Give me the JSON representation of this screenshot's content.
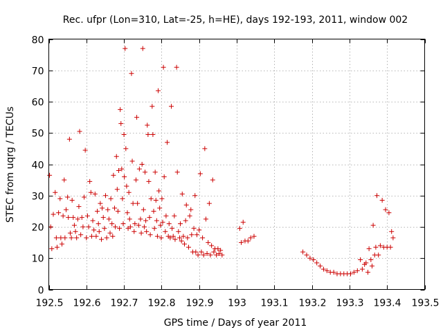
{
  "chart_data": {
    "type": "scatter",
    "title": "Rec. ufpr (Lon=310, Lat=-25, h=HE), days 192-193, 2011, window 002",
    "xlabel": "GPS time / Days of year 2011",
    "ylabel": "STEC from uqrg / TECUs",
    "xlim": [
      192.5,
      193.5
    ],
    "ylim": [
      0,
      80
    ],
    "x_ticks": [
      192.5,
      192.6,
      192.7,
      192.8,
      192.9,
      193,
      193.1,
      193.2,
      193.3,
      193.4,
      193.5
    ],
    "x_tick_labels": [
      "192.5",
      "192.6",
      "192.7",
      "192.8",
      "192.9",
      "193",
      "193.1",
      "193.2",
      "193.3",
      "193.4",
      "193.5"
    ],
    "y_ticks": [
      0,
      10,
      20,
      30,
      40,
      50,
      60,
      70,
      80
    ],
    "y_tick_labels": [
      "0",
      "10",
      "20",
      "30",
      "40",
      "50",
      "60",
      "70",
      "80"
    ],
    "grid": true,
    "marker": "plus",
    "color": "#cc0000",
    "series": [
      {
        "points": [
          [
            192.502,
            36.5
          ],
          [
            192.505,
            20.0
          ],
          [
            192.508,
            13.0
          ],
          [
            192.512,
            24.0
          ],
          [
            192.517,
            31.0
          ],
          [
            192.52,
            16.5
          ],
          [
            192.522,
            13.5
          ],
          [
            192.526,
            24.5
          ],
          [
            192.53,
            29.0
          ],
          [
            192.532,
            16.5
          ],
          [
            192.535,
            14.5
          ],
          [
            192.538,
            23.5
          ],
          [
            192.541,
            35.0
          ],
          [
            192.543,
            16.5
          ],
          [
            192.546,
            25.5
          ],
          [
            192.55,
            29.5
          ],
          [
            192.552,
            23.0
          ],
          [
            192.555,
            48.0
          ],
          [
            192.557,
            18.0
          ],
          [
            192.56,
            16.5
          ],
          [
            192.562,
            28.5
          ],
          [
            192.565,
            23.0
          ],
          [
            192.568,
            20.5
          ],
          [
            192.571,
            18.5
          ],
          [
            192.574,
            16.5
          ],
          [
            192.577,
            22.5
          ],
          [
            192.58,
            26.5
          ],
          [
            192.582,
            50.5
          ],
          [
            192.585,
            17.5
          ],
          [
            192.588,
            23.0
          ],
          [
            192.591,
            20.0
          ],
          [
            192.594,
            29.5
          ],
          [
            192.597,
            44.5
          ],
          [
            192.6,
            16.5
          ],
          [
            192.603,
            23.5
          ],
          [
            192.606,
            20.0
          ],
          [
            192.609,
            34.5
          ],
          [
            192.612,
            31.0
          ],
          [
            192.614,
            17.0
          ],
          [
            192.617,
            22.0
          ],
          [
            192.62,
            19.0
          ],
          [
            192.623,
            30.5
          ],
          [
            192.626,
            17.0
          ],
          [
            192.629,
            25.0
          ],
          [
            192.632,
            21.0
          ],
          [
            192.634,
            18.5
          ],
          [
            192.637,
            27.5
          ],
          [
            192.64,
            16.0
          ],
          [
            192.642,
            26.0
          ],
          [
            192.645,
            23.0
          ],
          [
            192.648,
            19.5
          ],
          [
            192.651,
            30.0
          ],
          [
            192.654,
            16.5
          ],
          [
            192.657,
            25.5
          ],
          [
            192.66,
            22.5
          ],
          [
            192.663,
            18.0
          ],
          [
            192.665,
            29.0
          ],
          [
            192.668,
            21.0
          ],
          [
            192.67,
            17.0
          ],
          [
            192.672,
            36.5
          ],
          [
            192.675,
            26.0
          ],
          [
            192.677,
            20.0
          ],
          [
            192.68,
            42.5
          ],
          [
            192.682,
            32.0
          ],
          [
            192.684,
            25.0
          ],
          [
            192.686,
            38.0
          ],
          [
            192.688,
            19.5
          ],
          [
            192.69,
            57.5
          ],
          [
            192.692,
            53.0
          ],
          [
            192.694,
            38.5
          ],
          [
            192.696,
            29.0
          ],
          [
            192.698,
            21.0
          ],
          [
            192.7,
            49.5
          ],
          [
            192.701,
            36.0
          ],
          [
            192.703,
            77.0
          ],
          [
            192.705,
            45.0
          ],
          [
            192.707,
            33.0
          ],
          [
            192.709,
            24.5
          ],
          [
            192.711,
            19.5
          ],
          [
            192.713,
            31.0
          ],
          [
            192.715,
            22.5
          ],
          [
            192.717,
            20.0
          ],
          [
            192.72,
            69.0
          ],
          [
            192.722,
            41.0
          ],
          [
            192.724,
            27.5
          ],
          [
            192.727,
            18.5
          ],
          [
            192.729,
            21.0
          ],
          [
            192.732,
            35.0
          ],
          [
            192.734,
            55.0
          ],
          [
            192.736,
            27.5
          ],
          [
            192.739,
            20.5
          ],
          [
            192.741,
            38.5
          ],
          [
            192.744,
            22.5
          ],
          [
            192.746,
            18.0
          ],
          [
            192.748,
            40.0
          ],
          [
            192.75,
            77.0
          ],
          [
            192.752,
            25.5
          ],
          [
            192.754,
            20.0
          ],
          [
            192.756,
            37.5
          ],
          [
            192.758,
            22.0
          ],
          [
            192.76,
            18.5
          ],
          [
            192.762,
            52.5
          ],
          [
            192.764,
            49.5
          ],
          [
            192.766,
            34.5
          ],
          [
            192.768,
            23.0
          ],
          [
            192.77,
            17.5
          ],
          [
            192.772,
            29.0
          ],
          [
            192.775,
            58.5
          ],
          [
            192.777,
            49.5
          ],
          [
            192.779,
            25.0
          ],
          [
            192.781,
            19.5
          ],
          [
            192.783,
            37.5
          ],
          [
            192.785,
            28.5
          ],
          [
            192.787,
            22.0
          ],
          [
            192.789,
            17.0
          ],
          [
            192.791,
            63.5
          ],
          [
            192.793,
            31.5
          ],
          [
            192.795,
            26.0
          ],
          [
            192.797,
            20.5
          ],
          [
            192.799,
            16.5
          ],
          [
            192.801,
            29.0
          ],
          [
            192.803,
            21.5
          ],
          [
            192.805,
            71.0
          ],
          [
            192.807,
            36.0
          ],
          [
            192.81,
            18.5
          ],
          [
            192.812,
            23.5
          ],
          [
            192.815,
            47.0
          ],
          [
            192.818,
            17.0
          ],
          [
            192.82,
            21.0
          ],
          [
            192.823,
            16.5
          ],
          [
            192.826,
            58.5
          ],
          [
            192.828,
            19.5
          ],
          [
            192.831,
            17.0
          ],
          [
            192.834,
            23.5
          ],
          [
            192.836,
            16.0
          ],
          [
            192.84,
            71.0
          ],
          [
            192.842,
            37.5
          ],
          [
            192.845,
            18.5
          ],
          [
            192.848,
            16.5
          ],
          [
            192.85,
            21.0
          ],
          [
            192.853,
            15.5
          ],
          [
            192.855,
            30.5
          ],
          [
            192.858,
            17.0
          ],
          [
            192.861,
            14.5
          ],
          [
            192.864,
            22.0
          ],
          [
            192.866,
            27.0
          ],
          [
            192.869,
            16.5
          ],
          [
            192.872,
            13.5
          ],
          [
            192.875,
            23.5
          ],
          [
            192.878,
            25.5
          ],
          [
            192.88,
            17.5
          ],
          [
            192.883,
            12.0
          ],
          [
            192.886,
            19.5
          ],
          [
            192.889,
            30.0
          ],
          [
            192.891,
            12.0
          ],
          [
            192.894,
            17.5
          ],
          [
            192.897,
            11.0
          ],
          [
            192.9,
            19.0
          ],
          [
            192.903,
            37.0
          ],
          [
            192.906,
            12.0
          ],
          [
            192.909,
            16.5
          ],
          [
            192.912,
            11.0
          ],
          [
            192.915,
            45.0
          ],
          [
            192.918,
            22.5
          ],
          [
            192.921,
            11.5
          ],
          [
            192.924,
            15.0
          ],
          [
            192.927,
            27.5
          ],
          [
            192.93,
            11.0
          ],
          [
            192.933,
            14.0
          ],
          [
            192.936,
            35.0
          ],
          [
            192.939,
            12.0
          ],
          [
            192.942,
            13.0
          ],
          [
            192.946,
            11.0
          ],
          [
            192.95,
            13.0
          ],
          [
            192.953,
            11.5
          ],
          [
            192.957,
            12.5
          ],
          [
            192.961,
            11.0
          ],
          [
            193.008,
            19.5
          ],
          [
            193.012,
            15.0
          ],
          [
            193.017,
            21.5
          ],
          [
            193.022,
            15.5
          ],
          [
            193.03,
            15.5
          ],
          [
            193.037,
            16.5
          ],
          [
            193.046,
            17.0
          ],
          [
            193.176,
            12.0
          ],
          [
            193.186,
            11.0
          ],
          [
            193.195,
            10.0
          ],
          [
            193.204,
            9.5
          ],
          [
            193.213,
            8.5
          ],
          [
            193.222,
            7.5
          ],
          [
            193.231,
            6.5
          ],
          [
            193.24,
            6.0
          ],
          [
            193.249,
            5.5
          ],
          [
            193.258,
            5.5
          ],
          [
            193.267,
            5.0
          ],
          [
            193.276,
            5.0
          ],
          [
            193.285,
            5.0
          ],
          [
            193.294,
            5.0
          ],
          [
            193.303,
            5.0
          ],
          [
            193.312,
            5.5
          ],
          [
            193.321,
            6.0
          ],
          [
            193.329,
            9.5
          ],
          [
            193.334,
            6.5
          ],
          [
            193.34,
            8.0
          ],
          [
            193.344,
            8.5
          ],
          [
            193.349,
            5.5
          ],
          [
            193.352,
            13.0
          ],
          [
            193.357,
            9.5
          ],
          [
            193.36,
            7.5
          ],
          [
            193.363,
            20.5
          ],
          [
            193.367,
            11.0
          ],
          [
            193.37,
            13.5
          ],
          [
            193.373,
            30.0
          ],
          [
            193.377,
            11.0
          ],
          [
            193.382,
            14.0
          ],
          [
            193.387,
            28.5
          ],
          [
            193.391,
            13.5
          ],
          [
            193.396,
            25.5
          ],
          [
            193.4,
            13.5
          ],
          [
            193.405,
            24.5
          ],
          [
            193.409,
            13.5
          ],
          [
            193.412,
            18.5
          ],
          [
            193.416,
            16.5
          ]
        ]
      }
    ]
  }
}
